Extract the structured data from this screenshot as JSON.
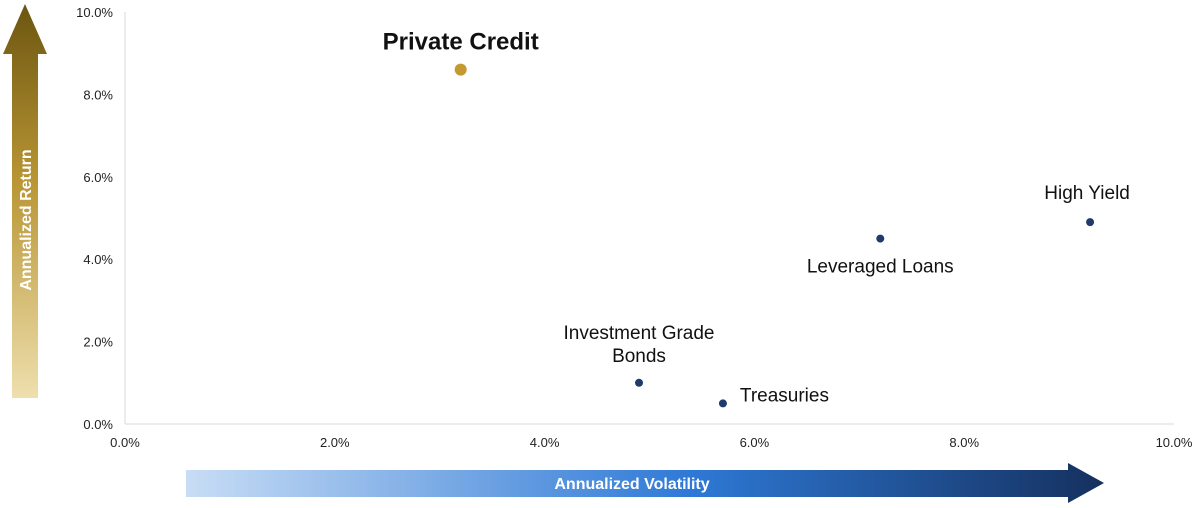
{
  "chart_data": {
    "type": "scatter",
    "title": "",
    "xlabel": "Annualized Volatility",
    "ylabel": "Annualized Return",
    "xlim": [
      0,
      10
    ],
    "ylim": [
      0,
      10
    ],
    "x_ticks": [
      "0.0%",
      "2.0%",
      "4.0%",
      "6.0%",
      "8.0%",
      "10.0%"
    ],
    "y_ticks": [
      "0.0%",
      "2.0%",
      "4.0%",
      "6.0%",
      "8.0%",
      "10.0%"
    ],
    "grid": false,
    "points": [
      {
        "label": "Private Credit",
        "x": 3.2,
        "y": 8.6,
        "highlight": true,
        "color": "#C39A2F"
      },
      {
        "label": "Investment Grade\nBonds",
        "x": 4.9,
        "y": 1.0,
        "highlight": false,
        "color": "#1F3A6B"
      },
      {
        "label": "Treasuries",
        "x": 5.7,
        "y": 0.5,
        "highlight": false,
        "color": "#1F3A6B"
      },
      {
        "label": "Leveraged Loans",
        "x": 7.2,
        "y": 4.5,
        "highlight": false,
        "color": "#1F3A6B"
      },
      {
        "label": "High Yield",
        "x": 9.2,
        "y": 4.9,
        "highlight": false,
        "color": "#1F3A6B"
      }
    ],
    "colors": {
      "return_arrow_top": "#6B5510",
      "return_arrow_bottom": "#EEDFAE",
      "volatility_arrow_left": "#C8DDF5",
      "volatility_arrow_mid": "#2E79D6",
      "volatility_arrow_right": "#15305E"
    }
  }
}
